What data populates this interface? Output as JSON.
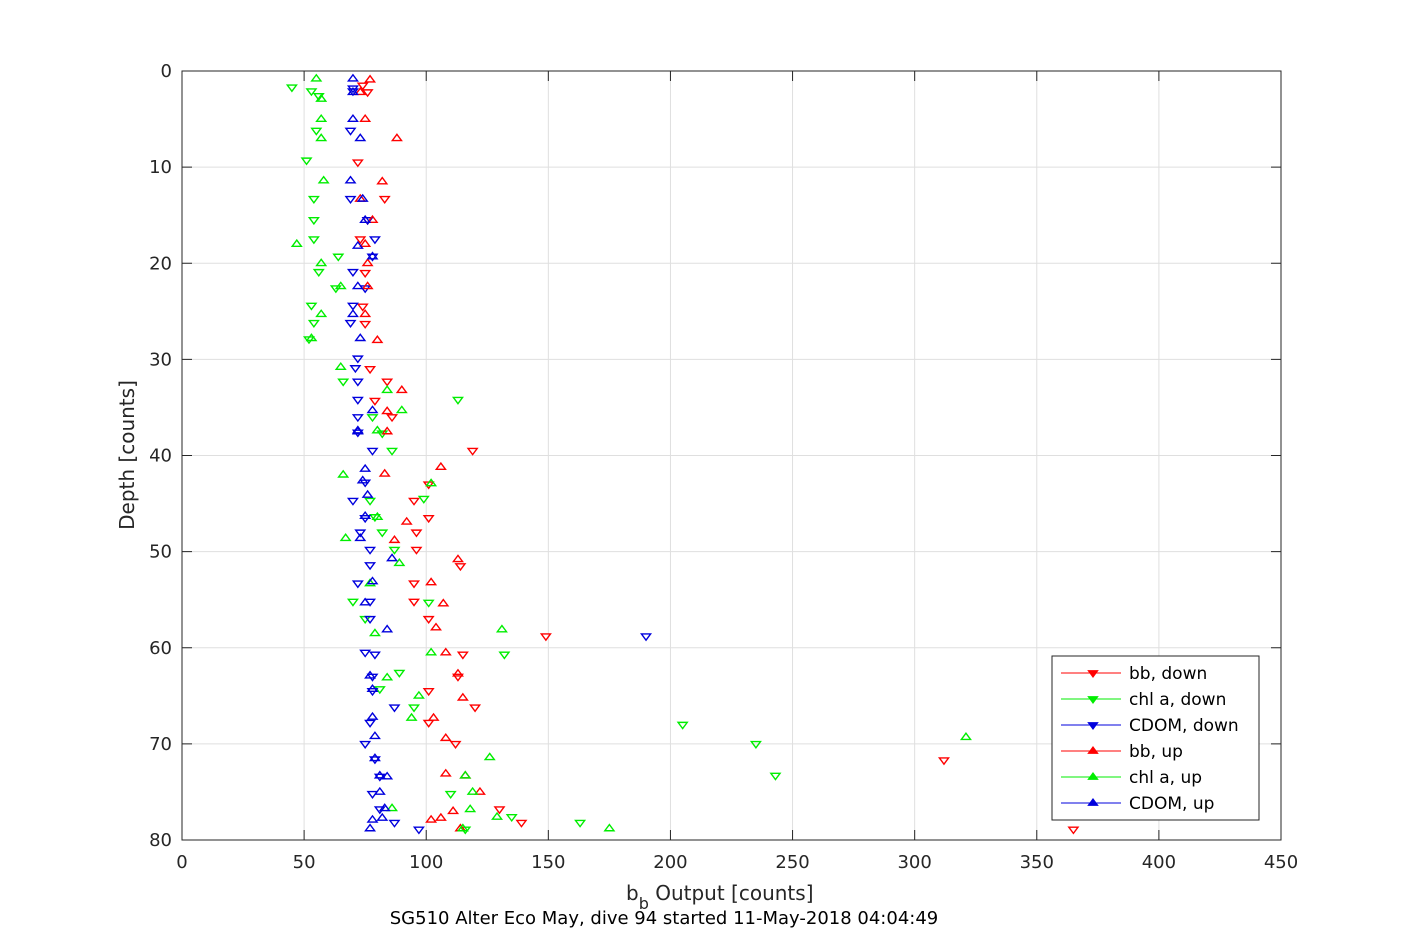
{
  "chart_data": {
    "type": "scatter",
    "xlabel_main": "b",
    "xlabel_sub": "b",
    "xlabel_rest": " Output [counts]",
    "ylabel": "Depth [counts]",
    "caption": "SG510 Alter Eco May, dive 94 started 11-May-2018 04:04:49",
    "xlim": [
      0,
      450
    ],
    "ylim": [
      0,
      80
    ],
    "y_reversed": true,
    "grid": true,
    "legend_position": "bottom-right",
    "xticks": [
      0,
      50,
      100,
      150,
      200,
      250,
      300,
      350,
      400,
      450
    ],
    "yticks": [
      0,
      10,
      20,
      30,
      40,
      50,
      60,
      70,
      80
    ],
    "series": [
      {
        "name": "bb, down",
        "color": "#ff0000",
        "marker": "triangle-down",
        "points": [
          [
            74,
            1.5
          ],
          [
            76,
            2.2
          ],
          [
            72,
            9.5
          ],
          [
            83,
            13.3
          ],
          [
            76,
            15.5
          ],
          [
            73,
            17.5
          ],
          [
            75,
            21
          ],
          [
            74,
            24.5
          ],
          [
            75,
            26.3
          ],
          [
            77,
            31
          ],
          [
            84,
            32.3
          ],
          [
            79,
            34.3
          ],
          [
            86,
            36
          ],
          [
            119,
            39.5
          ],
          [
            101,
            43
          ],
          [
            95,
            44.7
          ],
          [
            101,
            46.5
          ],
          [
            96,
            48
          ],
          [
            96,
            49.8
          ],
          [
            114,
            51.5
          ],
          [
            95,
            53.3
          ],
          [
            95,
            55.2
          ],
          [
            101,
            57
          ],
          [
            149,
            58.8
          ],
          [
            115,
            60.7
          ],
          [
            113,
            63
          ],
          [
            101,
            64.5
          ],
          [
            120,
            66.2
          ],
          [
            101,
            67.8
          ],
          [
            112,
            70
          ],
          [
            312,
            71.7
          ],
          [
            130,
            76.8
          ],
          [
            139,
            78.2
          ],
          [
            365,
            78.9
          ]
        ]
      },
      {
        "name": "chl a, down",
        "color": "#00ee00",
        "marker": "triangle-down",
        "points": [
          [
            45,
            1.7
          ],
          [
            53,
            2.1
          ],
          [
            56,
            2.6
          ],
          [
            55,
            6.2
          ],
          [
            51,
            9.3
          ],
          [
            54,
            13.3
          ],
          [
            54,
            15.5
          ],
          [
            54,
            17.5
          ],
          [
            64,
            19.3
          ],
          [
            56,
            20.9
          ],
          [
            63,
            22.6
          ],
          [
            53,
            24.4
          ],
          [
            54,
            26.2
          ],
          [
            52,
            27.9
          ],
          [
            66,
            32.3
          ],
          [
            113,
            34.2
          ],
          [
            78,
            36
          ],
          [
            82,
            37.7
          ],
          [
            86,
            39.5
          ],
          [
            99,
            44.5
          ],
          [
            77,
            44.7
          ],
          [
            79,
            46.4
          ],
          [
            82,
            48
          ],
          [
            87,
            49.8
          ],
          [
            70,
            55.2
          ],
          [
            101,
            55.3
          ],
          [
            75,
            57
          ],
          [
            132,
            60.7
          ],
          [
            89,
            62.6
          ],
          [
            81,
            64.3
          ],
          [
            95,
            66.2
          ],
          [
            205,
            68
          ],
          [
            235,
            70
          ],
          [
            243,
            73.3
          ],
          [
            110,
            75.2
          ],
          [
            116,
            78.9
          ],
          [
            163,
            78.2
          ],
          [
            135,
            77.6
          ]
        ]
      },
      {
        "name": "CDOM, down",
        "color": "#0000dd",
        "marker": "triangle-down",
        "points": [
          [
            70,
            1.8
          ],
          [
            70,
            2.1
          ],
          [
            69,
            6.2
          ],
          [
            69,
            13.3
          ],
          [
            76,
            15.5
          ],
          [
            79,
            17.5
          ],
          [
            78,
            19.3
          ],
          [
            70,
            20.9
          ],
          [
            75,
            22.6
          ],
          [
            70,
            24.4
          ],
          [
            69,
            26.2
          ],
          [
            72,
            29.9
          ],
          [
            71,
            30.9
          ],
          [
            72,
            32.3
          ],
          [
            72,
            34.2
          ],
          [
            72,
            36
          ],
          [
            72,
            37.6
          ],
          [
            78,
            39.5
          ],
          [
            75,
            42.8
          ],
          [
            70,
            44.7
          ],
          [
            75,
            46.5
          ],
          [
            73,
            48
          ],
          [
            77,
            49.8
          ],
          [
            77,
            51.4
          ],
          [
            72,
            53.3
          ],
          [
            77,
            55.2
          ],
          [
            77,
            57
          ],
          [
            75,
            60.5
          ],
          [
            79,
            60.7
          ],
          [
            78,
            63
          ],
          [
            78,
            64.5
          ],
          [
            87,
            66.2
          ],
          [
            77,
            67.8
          ],
          [
            75,
            70
          ],
          [
            79,
            71.6
          ],
          [
            78,
            75.2
          ],
          [
            81,
            76.8
          ],
          [
            87,
            78.2
          ],
          [
            97,
            78.9
          ],
          [
            81,
            73.4
          ],
          [
            190,
            58.8
          ]
        ]
      },
      {
        "name": "bb, up",
        "color": "#ff0000",
        "marker": "triangle-up",
        "points": [
          [
            77,
            0.9
          ],
          [
            73,
            2.2
          ],
          [
            75,
            5
          ],
          [
            88,
            7
          ],
          [
            82,
            11.5
          ],
          [
            73,
            13.3
          ],
          [
            78,
            15.5
          ],
          [
            75,
            18
          ],
          [
            76,
            20
          ],
          [
            76,
            22.4
          ],
          [
            75,
            25.3
          ],
          [
            80,
            28
          ],
          [
            90,
            33.2
          ],
          [
            84,
            35.4
          ],
          [
            84,
            37.5
          ],
          [
            83,
            41.9
          ],
          [
            106,
            41.2
          ],
          [
            92,
            46.9
          ],
          [
            87,
            48.8
          ],
          [
            113,
            50.8
          ],
          [
            102,
            53.2
          ],
          [
            107,
            55.4
          ],
          [
            104,
            57.9
          ],
          [
            108,
            60.5
          ],
          [
            113,
            62.7
          ],
          [
            115,
            65.2
          ],
          [
            103,
            67.3
          ],
          [
            108,
            69.4
          ],
          [
            108,
            73.1
          ],
          [
            116,
            73.3
          ],
          [
            122,
            75
          ],
          [
            111,
            77
          ],
          [
            106,
            77.7
          ],
          [
            102,
            77.9
          ],
          [
            114,
            78.8
          ]
        ]
      },
      {
        "name": "chl a, up",
        "color": "#00ee00",
        "marker": "triangle-up",
        "points": [
          [
            55,
            0.8
          ],
          [
            57,
            2.9
          ],
          [
            57,
            5
          ],
          [
            57,
            7
          ],
          [
            58,
            11.4
          ],
          [
            47,
            18
          ],
          [
            57,
            20
          ],
          [
            65,
            22.4
          ],
          [
            57,
            25.3
          ],
          [
            53,
            27.8
          ],
          [
            65,
            30.8
          ],
          [
            84,
            33.2
          ],
          [
            90,
            35.3
          ],
          [
            80,
            37.4
          ],
          [
            66,
            42
          ],
          [
            102,
            42.9
          ],
          [
            80,
            46.4
          ],
          [
            67,
            48.6
          ],
          [
            89,
            51.2
          ],
          [
            77,
            53.3
          ],
          [
            102,
            60.5
          ],
          [
            131,
            58.1
          ],
          [
            79,
            58.5
          ],
          [
            84,
            63.1
          ],
          [
            97,
            65
          ],
          [
            94,
            67.3
          ],
          [
            321,
            69.3
          ],
          [
            126,
            71.4
          ],
          [
            116,
            73.3
          ],
          [
            119,
            75
          ],
          [
            118,
            76.8
          ],
          [
            129,
            77.6
          ],
          [
            175,
            78.8
          ],
          [
            86,
            76.7
          ],
          [
            115,
            78.8
          ]
        ]
      },
      {
        "name": "CDOM, up",
        "color": "#0000dd",
        "marker": "triangle-up",
        "points": [
          [
            70,
            0.8
          ],
          [
            70,
            2.2
          ],
          [
            70,
            5
          ],
          [
            73,
            7
          ],
          [
            69,
            11.4
          ],
          [
            74,
            13.3
          ],
          [
            75,
            15.5
          ],
          [
            72,
            18.2
          ],
          [
            78,
            19.3
          ],
          [
            72,
            22.4
          ],
          [
            70,
            25.3
          ],
          [
            73,
            27.8
          ],
          [
            78,
            35.3
          ],
          [
            72,
            37.4
          ],
          [
            72,
            37.5
          ],
          [
            75,
            41.4
          ],
          [
            74,
            42.6
          ],
          [
            76,
            44.1
          ],
          [
            75,
            46.3
          ],
          [
            73,
            48.6
          ],
          [
            86,
            50.7
          ],
          [
            78,
            53.1
          ],
          [
            75,
            55.3
          ],
          [
            84,
            58.1
          ],
          [
            77,
            62.9
          ],
          [
            78,
            64.3
          ],
          [
            78,
            67.2
          ],
          [
            79,
            69.2
          ],
          [
            79,
            71.5
          ],
          [
            81,
            73.3
          ],
          [
            84,
            73.4
          ],
          [
            81,
            75
          ],
          [
            83,
            76.7
          ],
          [
            82,
            77.7
          ],
          [
            78,
            77.9
          ],
          [
            77,
            78.8
          ]
        ]
      }
    ]
  }
}
